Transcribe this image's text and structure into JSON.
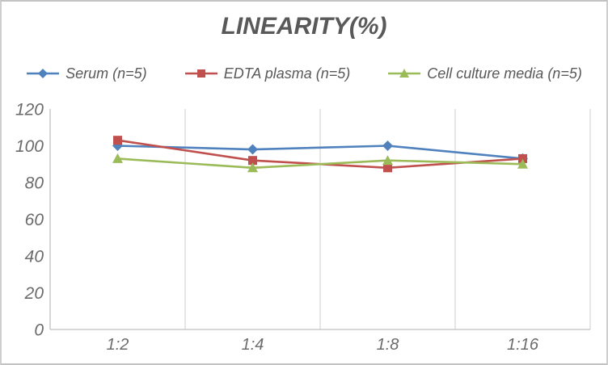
{
  "title": "LINEARITY(%)",
  "chart_data": {
    "type": "line",
    "title": "LINEARITY(%)",
    "categories": [
      "1:2",
      "1:4",
      "1:8",
      "1:16"
    ],
    "series": [
      {
        "name": "Serum (n=5)",
        "marker": "diamond",
        "color": "#4F81BD",
        "values": [
          100,
          98,
          100,
          93
        ]
      },
      {
        "name": "EDTA plasma (n=5)",
        "marker": "square",
        "color": "#C0504D",
        "values": [
          103,
          92,
          88,
          93
        ]
      },
      {
        "name": "Cell culture media (n=5)",
        "marker": "triangle",
        "color": "#9BBB59",
        "values": [
          93,
          88,
          92,
          90
        ]
      }
    ],
    "ylim": [
      0,
      120
    ],
    "yticks": [
      0,
      20,
      40,
      60,
      80,
      100,
      120
    ],
    "xlabel": "",
    "ylabel": "",
    "grid": "vertical-only",
    "legend_position": "top",
    "style": {
      "title_color": "#595959",
      "legend_text_color": "#595959",
      "axis_text_color": "#6b6b6b",
      "grid_color": "#d9d9d9",
      "axis_line_color": "#bfbfbf",
      "frame_border_color": "#c9c9c9",
      "background": "#ffffff"
    }
  }
}
